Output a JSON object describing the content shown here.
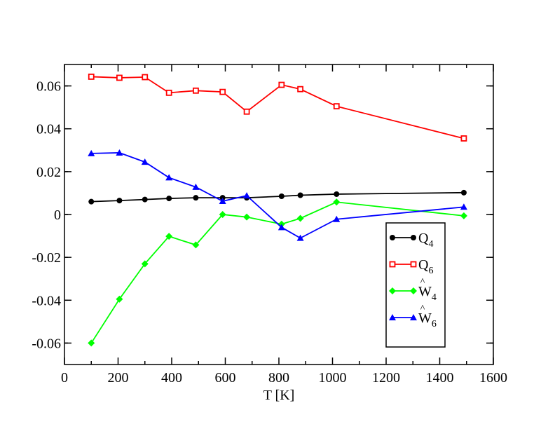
{
  "chart_data": {
    "type": "line",
    "xlabel": "T [K]",
    "ylabel": "",
    "xlim": [
      0,
      1600
    ],
    "ylim": [
      -0.07,
      0.07
    ],
    "xticks": [
      0,
      200,
      400,
      600,
      800,
      1000,
      1200,
      1400,
      1600
    ],
    "xtick_labels": [
      "0",
      "200",
      "400",
      "600",
      "800",
      "1000",
      "1200",
      "1400",
      "1600"
    ],
    "yticks": [
      -0.06,
      -0.04,
      -0.02,
      0,
      0.02,
      0.04,
      0.06
    ],
    "ytick_labels": [
      "-0.06",
      "-0.04",
      "-0.02",
      "0",
      "0.02",
      "0.04",
      "0.06"
    ],
    "grid": false,
    "legend_position": "bottom-right",
    "series": [
      {
        "name": "Q4",
        "label_main": "Q",
        "label_sub": "4",
        "label_hat": false,
        "color": "#000000",
        "marker": "circle",
        "x": [
          100,
          205,
          300,
          390,
          490,
          590,
          680,
          810,
          880,
          1015,
          1490
        ],
        "y": [
          0.006,
          0.0065,
          0.007,
          0.0075,
          0.0078,
          0.0078,
          0.0078,
          0.0085,
          0.009,
          0.0095,
          0.0102
        ]
      },
      {
        "name": "Q6",
        "label_main": "Q",
        "label_sub": "6",
        "label_hat": false,
        "color": "#ff0000",
        "marker": "square",
        "x": [
          100,
          205,
          300,
          390,
          490,
          590,
          680,
          810,
          880,
          1015,
          1490
        ],
        "y": [
          0.0643,
          0.0638,
          0.0641,
          0.0568,
          0.0578,
          0.0572,
          0.048,
          0.0605,
          0.0585,
          0.0505,
          0.0355
        ]
      },
      {
        "name": "W4",
        "label_main": "W",
        "label_sub": "4",
        "label_hat": true,
        "color": "#00ff00",
        "marker": "diamond",
        "x": [
          100,
          205,
          300,
          390,
          490,
          590,
          680,
          810,
          880,
          1015,
          1490
        ],
        "y": [
          -0.06,
          -0.0395,
          -0.023,
          -0.0102,
          -0.0142,
          0.0,
          -0.0012,
          -0.0045,
          -0.0018,
          0.0058,
          -0.0006
        ]
      },
      {
        "name": "W6",
        "label_main": "W",
        "label_sub": "6",
        "label_hat": true,
        "color": "#0000ff",
        "marker": "triangle",
        "x": [
          100,
          205,
          300,
          390,
          490,
          590,
          680,
          810,
          880,
          1015,
          1490
        ],
        "y": [
          0.0285,
          0.0288,
          0.0245,
          0.0172,
          0.0128,
          0.0062,
          0.0088,
          -0.006,
          -0.011,
          -0.0022,
          0.0035
        ]
      }
    ]
  }
}
